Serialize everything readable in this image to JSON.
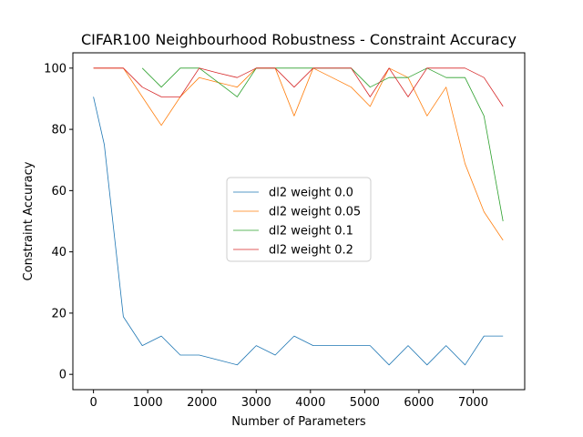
{
  "chart_data": {
    "type": "line",
    "title": "CIFAR100 Neighbourhood Robustness - Constraint Accuracy",
    "xlabel": "Number of Parameters",
    "ylabel": "Constraint Accuracy",
    "xlim": [
      -380,
      7950
    ],
    "ylim": [
      -5,
      105
    ],
    "xticks": [
      0,
      1000,
      2000,
      3000,
      4000,
      5000,
      6000,
      7000
    ],
    "yticks": [
      0,
      20,
      40,
      60,
      80,
      100
    ],
    "grid": false,
    "legend_position": "center-right",
    "series": [
      {
        "name": "dl2 weight 0.0",
        "color": "#1f77b4",
        "x": [
          0,
          200,
          550,
          900,
          1250,
          1600,
          1950,
          2300,
          2650,
          3000,
          3350,
          3700,
          4050,
          4400,
          4750,
          5100,
          5450,
          5800,
          6150,
          6500,
          6850,
          7200,
          7550
        ],
        "y": [
          90.6,
          75,
          18.8,
          9.4,
          12.5,
          6.3,
          6.3,
          4.7,
          3.1,
          9.4,
          6.3,
          12.5,
          9.4,
          9.4,
          9.4,
          9.4,
          3.1,
          9.4,
          3.1,
          9.4,
          3.1,
          12.5,
          12.5
        ]
      },
      {
        "name": "dl2 weight 0.05",
        "color": "#ff7f0e",
        "x": [
          0,
          200,
          550,
          900,
          1250,
          1600,
          1950,
          2300,
          2650,
          3000,
          3350,
          3700,
          4050,
          4400,
          4750,
          5100,
          5450,
          5800,
          6150,
          6500,
          6850,
          7200,
          7550
        ],
        "y": [
          100,
          100,
          100,
          90.6,
          81.3,
          90.6,
          96.9,
          95.3,
          93.8,
          100,
          100,
          84.4,
          100,
          96.9,
          93.8,
          87.5,
          100,
          96.9,
          84.4,
          93.8,
          68.8,
          53.1,
          43.8
        ]
      },
      {
        "name": "dl2 weight 0.1",
        "color": "#2ca02c",
        "x": [
          900,
          1250,
          1600,
          1950,
          2300,
          2650,
          3000,
          3350,
          3700,
          4050,
          4400,
          4750,
          5100,
          5450,
          5800,
          6150,
          6500,
          6850,
          7200,
          7550
        ],
        "y": [
          100,
          93.8,
          100,
          100,
          95.3,
          90.6,
          100,
          100,
          100,
          100,
          100,
          100,
          93.8,
          96.9,
          96.9,
          100,
          96.9,
          96.9,
          84.4,
          50
        ]
      },
      {
        "name": "dl2 weight 0.2",
        "color": "#d62728",
        "x": [
          0,
          200,
          550,
          900,
          1250,
          1600,
          1950,
          2300,
          2650,
          3000,
          3350,
          3700,
          4050,
          4400,
          4750,
          5100,
          5450,
          5800,
          6150,
          6500,
          6850,
          7200,
          7550
        ],
        "y": [
          100,
          100,
          100,
          93.8,
          90.6,
          90.6,
          100,
          98.4,
          96.9,
          100,
          100,
          93.8,
          100,
          100,
          100,
          90.6,
          100,
          90.6,
          100,
          100,
          100,
          96.9,
          87.5
        ]
      }
    ]
  }
}
